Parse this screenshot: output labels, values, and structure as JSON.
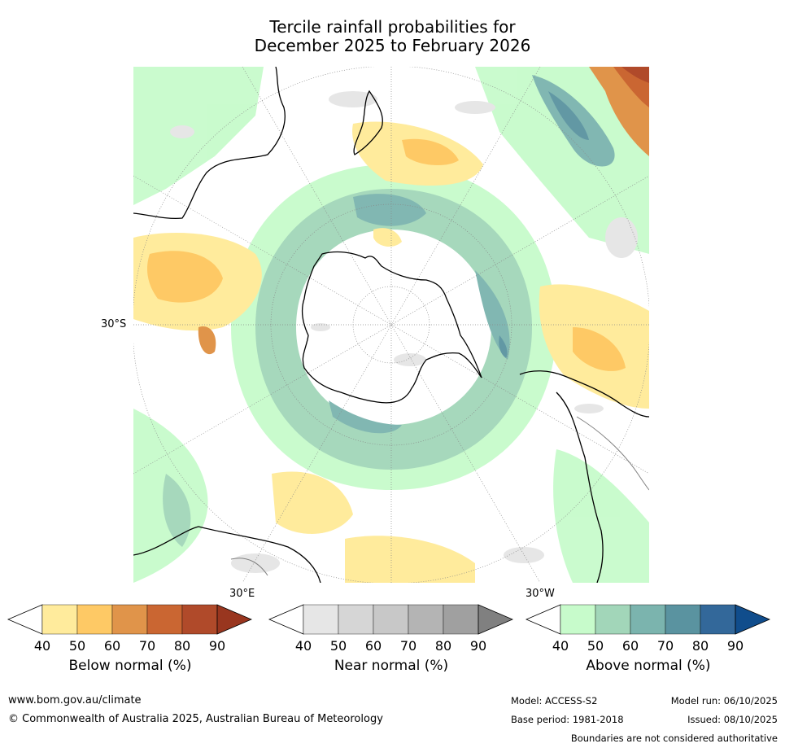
{
  "title_line1": "Tercile rainfall probabilities for",
  "title_line2": "December 2025 to February 2026",
  "map": {
    "lat_label": "30°S",
    "lon_label_east": "30°E",
    "lon_label_west": "30°W",
    "ocean_color": "#ffffff",
    "coastline_color": "#000000",
    "border_color": "#808080"
  },
  "colorbars": [
    {
      "name": "below",
      "title": "Below normal (%)",
      "ticks": [
        "40",
        "50",
        "60",
        "70",
        "80",
        "90"
      ],
      "colors": [
        "#ffffff",
        "#ffeb9c",
        "#fec965",
        "#e0944a",
        "#ca6632",
        "#b04a2a",
        "#99361f"
      ]
    },
    {
      "name": "near",
      "title": "Near normal (%)",
      "ticks": [
        "40",
        "50",
        "60",
        "70",
        "80",
        "90"
      ],
      "colors": [
        "#ffffff",
        "#e6e6e6",
        "#d6d6d6",
        "#c8c8c8",
        "#b4b4b4",
        "#a0a0a0",
        "#808080"
      ]
    },
    {
      "name": "above",
      "title": "Above normal (%)",
      "ticks": [
        "40",
        "50",
        "60",
        "70",
        "80",
        "90"
      ],
      "colors": [
        "#ffffff",
        "#c7fbcb",
        "#a2d6b9",
        "#7bb4ae",
        "#5a93a0",
        "#33689a",
        "#104d8c"
      ]
    }
  ],
  "footer": {
    "url": "www.bom.gov.au/climate",
    "copyright": "© Commonwealth of Australia 2025, Australian Bureau of Meteorology",
    "model": "Model: ACCESS-S2",
    "base_period": "Base period: 1981-2018",
    "model_run": "Model run: 06/10/2025",
    "issued": "Issued: 08/10/2025",
    "disclaimer": "Boundaries are not considered authoritative"
  }
}
